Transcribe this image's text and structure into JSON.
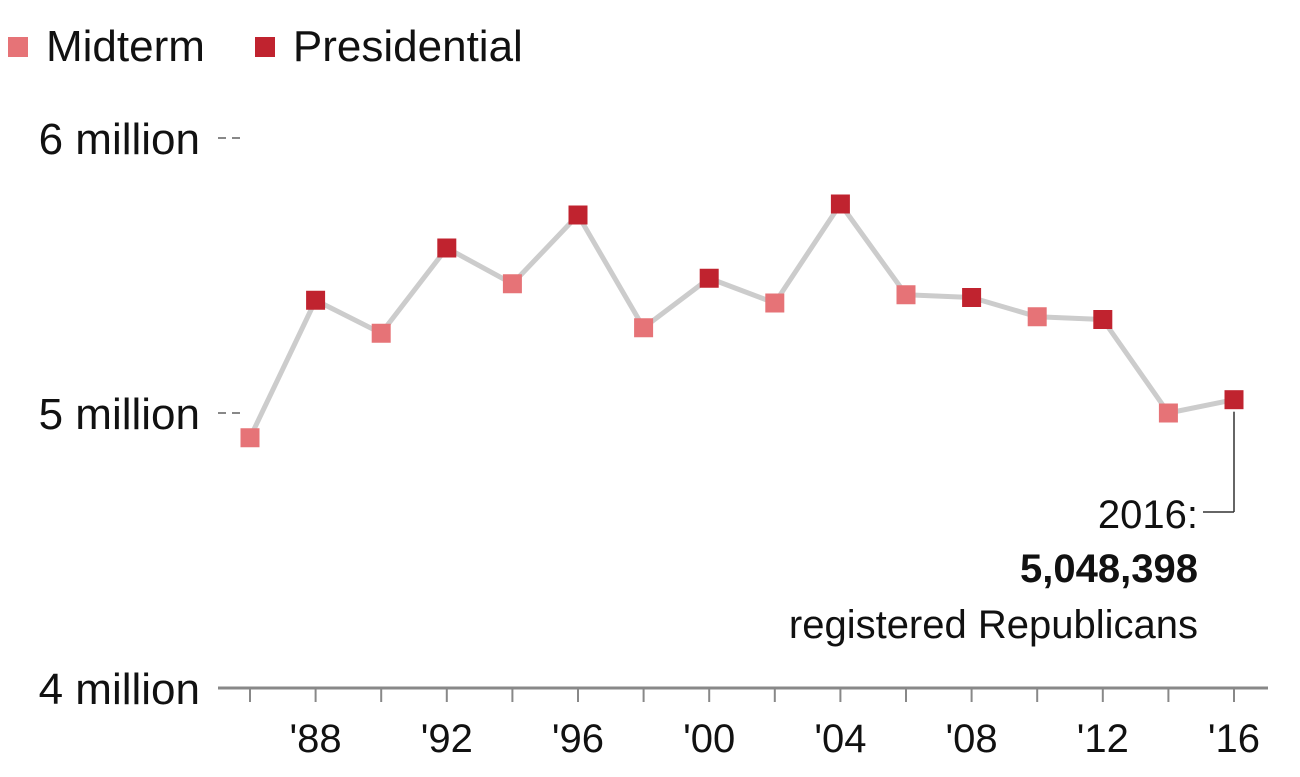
{
  "chart_data": {
    "type": "line",
    "x": [
      1986,
      1988,
      1990,
      1992,
      1994,
      1996,
      1998,
      2000,
      2002,
      2004,
      2006,
      2008,
      2010,
      2012,
      2014,
      2016
    ],
    "values": [
      4.91,
      5.41,
      5.29,
      5.6,
      5.47,
      5.72,
      5.31,
      5.49,
      5.4,
      5.76,
      5.43,
      5.42,
      5.35,
      5.34,
      5.0,
      5.048398
    ],
    "election_type": [
      "midterm",
      "presidential",
      "midterm",
      "presidential",
      "midterm",
      "presidential",
      "midterm",
      "presidential",
      "midterm",
      "presidential",
      "midterm",
      "presidential",
      "midterm",
      "presidential",
      "midterm",
      "presidential"
    ],
    "ylim": [
      4,
      6
    ],
    "yticks": [
      {
        "value": 6,
        "label": "6 million"
      },
      {
        "value": 5,
        "label": "5 million"
      },
      {
        "value": 4,
        "label": "4 million"
      }
    ],
    "xticks": [
      {
        "year": 1988,
        "label": "'88"
      },
      {
        "year": 1992,
        "label": "'92"
      },
      {
        "year": 1996,
        "label": "'96"
      },
      {
        "year": 2000,
        "label": "'00"
      },
      {
        "year": 2004,
        "label": "'04"
      },
      {
        "year": 2008,
        "label": "'08"
      },
      {
        "year": 2012,
        "label": "'12"
      },
      {
        "year": 2016,
        "label": "'16"
      }
    ],
    "legend": [
      {
        "name": "Midterm",
        "color": "#e67377"
      },
      {
        "name": "Presidential",
        "color": "#c0232f"
      }
    ],
    "legend_position": "top-left",
    "annotation": {
      "year_label": "2016:",
      "value_label": "5,048,398",
      "desc_label": "registered Republicans"
    },
    "line_color": "#cccccc",
    "axis_color": "#888888"
  }
}
